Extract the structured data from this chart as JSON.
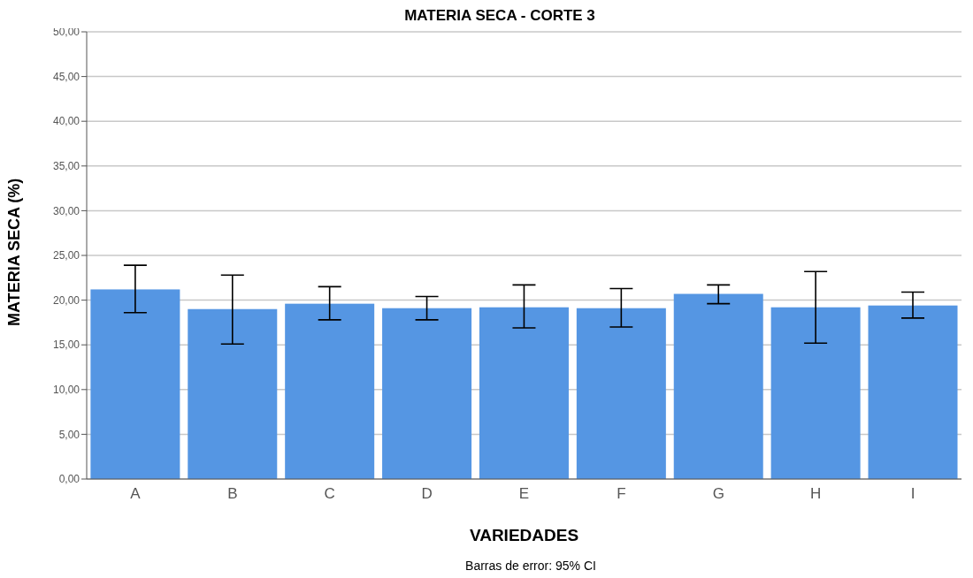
{
  "chart_data": {
    "type": "bar",
    "title": "MATERIA SECA - CORTE 3",
    "xlabel": "VARIEDADES",
    "ylabel": "MATERIA SECA (%)",
    "categories": [
      "A",
      "B",
      "C",
      "D",
      "E",
      "F",
      "G",
      "H",
      "I"
    ],
    "values": [
      21.2,
      19.0,
      19.6,
      19.1,
      19.2,
      19.1,
      20.7,
      19.2,
      19.4
    ],
    "errors": [
      [
        18.6,
        23.9
      ],
      [
        15.1,
        22.8
      ],
      [
        17.8,
        21.5
      ],
      [
        17.8,
        20.4
      ],
      [
        16.9,
        21.7
      ],
      [
        17.0,
        21.3
      ],
      [
        19.6,
        21.7
      ],
      [
        15.2,
        23.2
      ],
      [
        18.0,
        20.9
      ]
    ],
    "color": "#5596e3",
    "ylim": [
      0,
      50
    ],
    "yticks": [
      {
        "value": 0,
        "label": "0,00"
      },
      {
        "value": 5,
        "label": "5,00"
      },
      {
        "value": 10,
        "label": "10,00"
      },
      {
        "value": 15,
        "label": "15,00"
      },
      {
        "value": 20,
        "label": "20,00"
      },
      {
        "value": 25,
        "label": "25,00"
      },
      {
        "value": 30,
        "label": "30,00"
      },
      {
        "value": 35,
        "label": "35,00"
      },
      {
        "value": 40,
        "label": "40,00"
      },
      {
        "value": 45,
        "label": "45,00"
      },
      {
        "value": 50,
        "label": "50,00"
      }
    ],
    "grid": "y",
    "legend": false,
    "annotations": [
      "Barras de error: 95% CI"
    ]
  }
}
